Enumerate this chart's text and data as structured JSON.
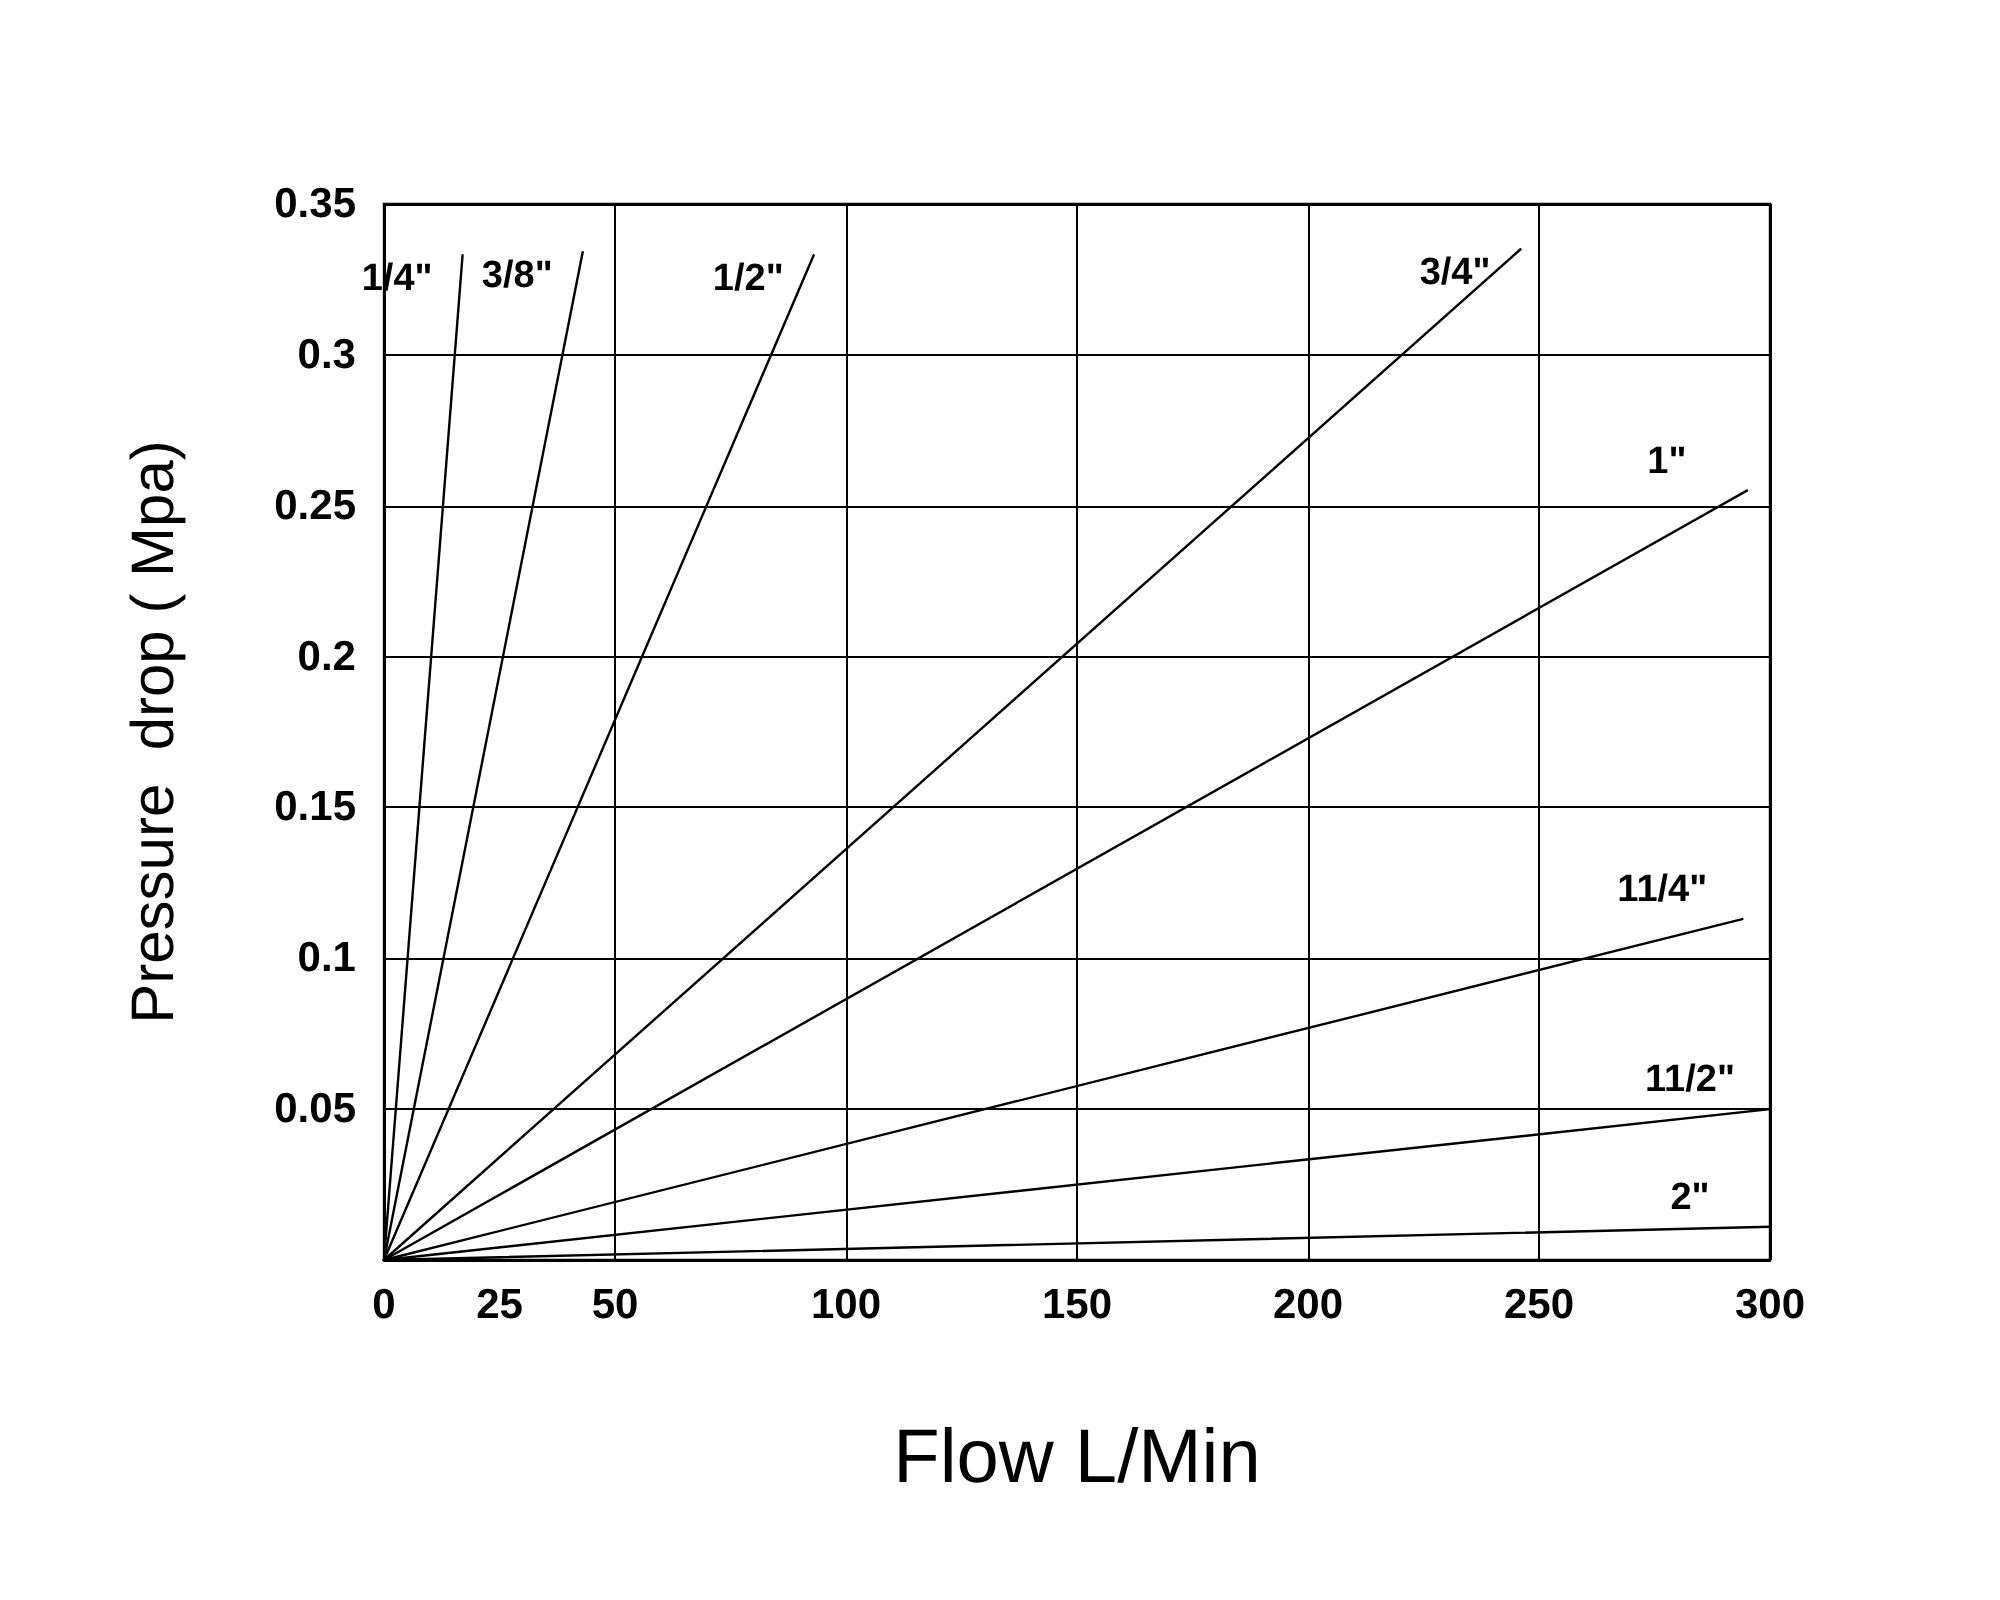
{
  "chart_data": {
    "type": "line",
    "xlabel": "Flow L/Min",
    "ylabel": "Pressure  drop ( Mpa)",
    "xlim": [
      0,
      300
    ],
    "xticks": [
      0,
      25,
      50,
      100,
      150,
      200,
      250,
      300
    ],
    "ylim": [
      0,
      0.35
    ],
    "yticks": [
      0.05,
      0.1,
      0.15,
      0.2,
      0.25,
      0.3,
      0.35
    ],
    "grid": true,
    "marker": "none",
    "line_style": "solid",
    "legend": false,
    "series": [
      {
        "name": "1/4\"",
        "color": "#000000",
        "x": [
          0,
          17
        ],
        "values": [
          0,
          0.333
        ]
      },
      {
        "name": "3/8\"",
        "color": "#000000",
        "x": [
          0,
          43
        ],
        "values": [
          0,
          0.334
        ]
      },
      {
        "name": "1/2\"",
        "color": "#000000",
        "x": [
          0,
          93
        ],
        "values": [
          0,
          0.333
        ]
      },
      {
        "name": "3/4\"",
        "color": "#000000",
        "x": [
          0,
          246
        ],
        "values": [
          0,
          0.335
        ]
      },
      {
        "name": "1\"",
        "color": "#000000",
        "x": [
          0,
          295
        ],
        "values": [
          0,
          0.255
        ]
      },
      {
        "name": "11/4\"",
        "color": "#000000",
        "x": [
          0,
          294
        ],
        "values": [
          0,
          0.113
        ]
      },
      {
        "name": "11/2\"",
        "color": "#000000",
        "x": [
          0,
          300
        ],
        "values": [
          0,
          0.05
        ]
      },
      {
        "name": "2\"",
        "color": "#000000",
        "x": [
          0,
          300
        ],
        "values": [
          0,
          0.011
        ]
      }
    ]
  }
}
